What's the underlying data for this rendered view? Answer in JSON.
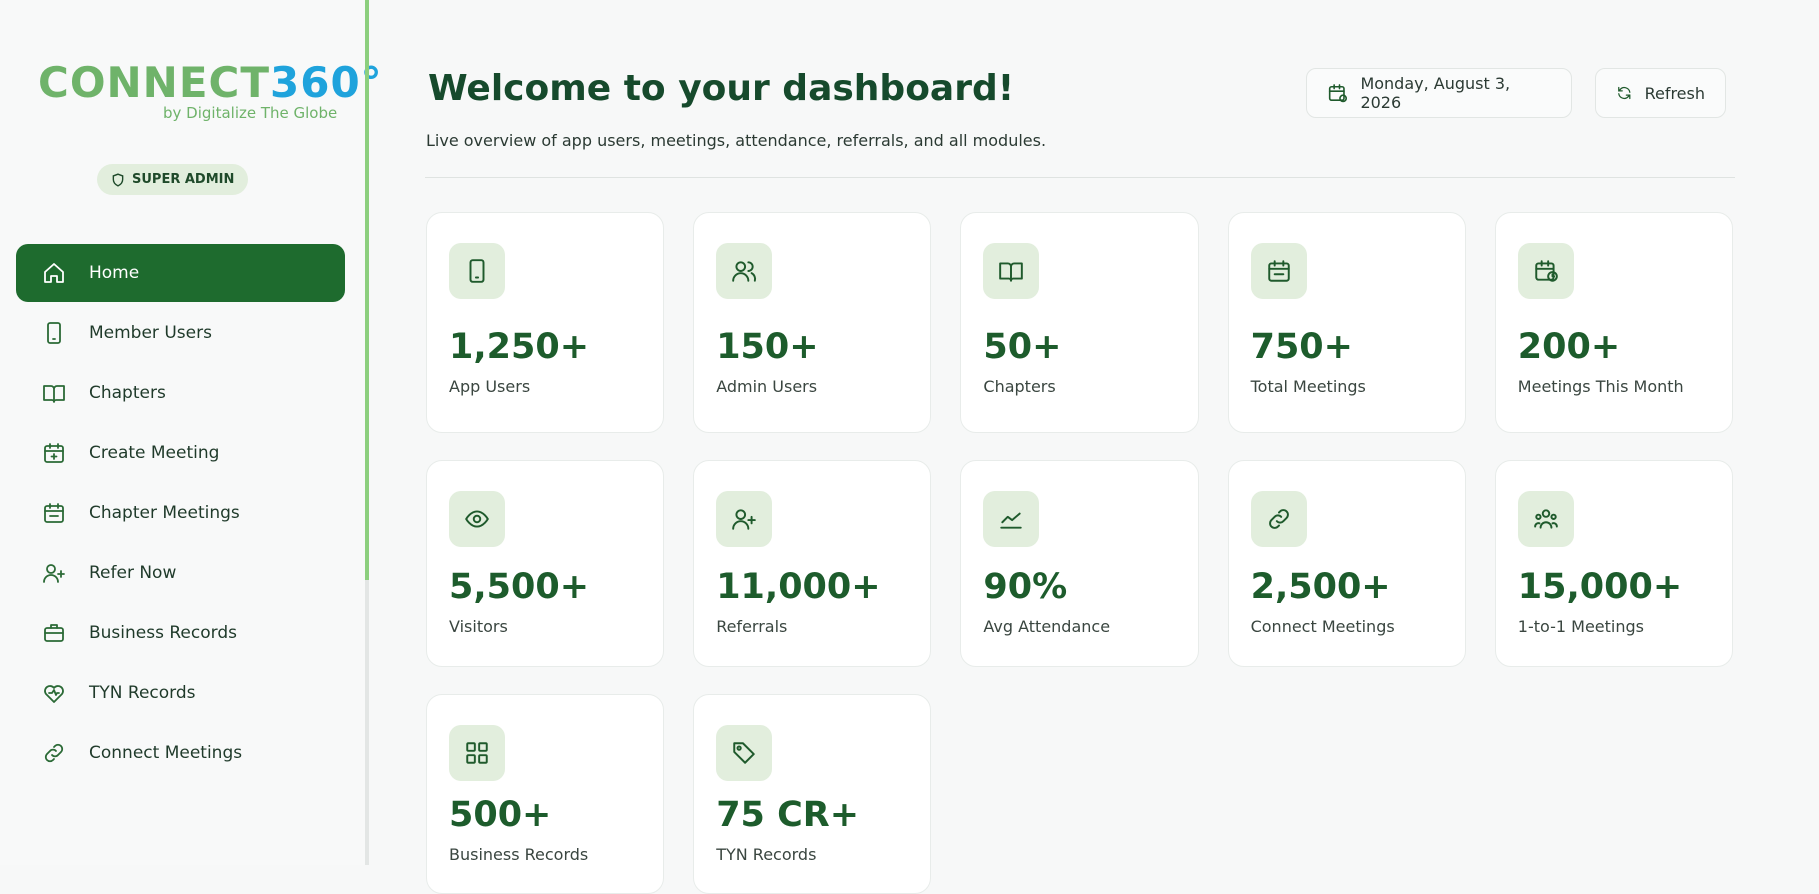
{
  "sidebar": {
    "brand_main": "CONNECT",
    "brand_num": "360°",
    "tagline": "by Digitalize The Globe",
    "badge": "SUPER ADMIN",
    "nav": [
      {
        "label": "Home",
        "active": true
      },
      {
        "label": "Member Users"
      },
      {
        "label": "Chapters"
      },
      {
        "label": "Create Meeting"
      },
      {
        "label": "Chapter Meetings"
      },
      {
        "label": "Refer Now"
      },
      {
        "label": "Business Records"
      },
      {
        "label": "TYN Records"
      },
      {
        "label": "Connect Meetings"
      }
    ]
  },
  "header": {
    "title": "Welcome to your dashboard!",
    "subtitle": "Live overview of app users, meetings, attendance, referrals, and all modules.",
    "date": "Monday, August 3, 2026",
    "refresh": "Refresh"
  },
  "stats": [
    {
      "value": "1,250+",
      "label": "App Users"
    },
    {
      "value": "150+",
      "label": "Admin Users"
    },
    {
      "value": "50+",
      "label": "Chapters"
    },
    {
      "value": "750+",
      "label": "Total Meetings"
    },
    {
      "value": "200+",
      "label": "Meetings This Month"
    },
    {
      "value": "5,500+",
      "label": "Visitors"
    },
    {
      "value": "11,000+",
      "label": "Referrals"
    },
    {
      "value": "90%",
      "label": "Avg Attendance"
    },
    {
      "value": "2,500+",
      "label": "Connect Meetings"
    },
    {
      "value": "15,000+",
      "label": "1-to-1 Meetings"
    },
    {
      "value": "500+",
      "label": "Business Records"
    },
    {
      "value": "75 CR+",
      "label": "TYN Records"
    }
  ]
}
